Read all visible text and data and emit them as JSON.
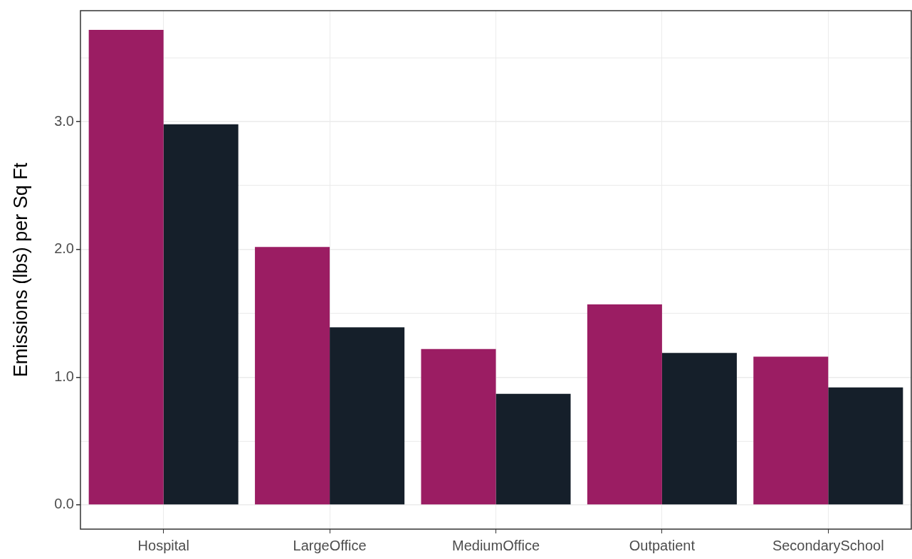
{
  "chart_data": {
    "type": "bar",
    "ylabel": "Emissions (lbs) per Sq Ft",
    "categories": [
      "Hospital",
      "LargeOffice",
      "MediumOffice",
      "Outpatient",
      "SecondarySchool"
    ],
    "series": [
      {
        "color": "#9b1d63",
        "values": [
          3.72,
          2.02,
          1.22,
          1.57,
          1.16
        ]
      },
      {
        "color": "#151f2a",
        "values": [
          2.98,
          1.39,
          0.87,
          1.19,
          0.92
        ]
      }
    ],
    "ylim": [
      -0.19,
      3.87
    ],
    "yticks": [
      {
        "value": 0,
        "label": "0.0"
      },
      {
        "value": 0.5,
        "label": null
      },
      {
        "value": 1,
        "label": "1.0"
      },
      {
        "value": 1.5,
        "label": null
      },
      {
        "value": 2,
        "label": "2.0"
      },
      {
        "value": 2.5,
        "label": null
      },
      {
        "value": 3,
        "label": "3.0"
      },
      {
        "value": 3.5,
        "label": null
      }
    ],
    "grid": true,
    "legend": false
  }
}
